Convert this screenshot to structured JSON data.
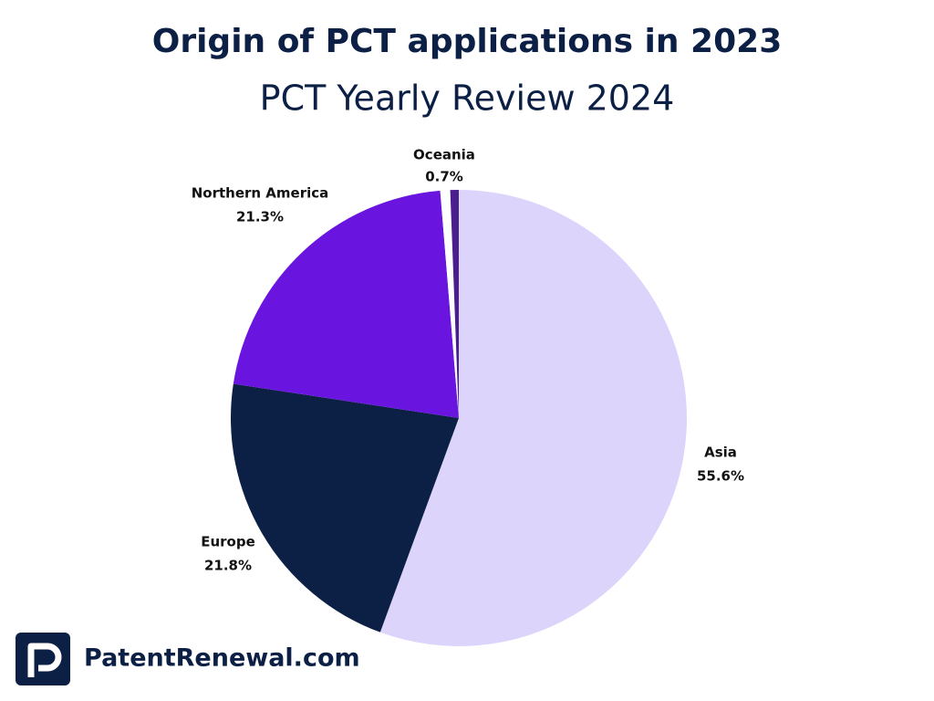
{
  "chart_data": {
    "type": "pie",
    "title": "Origin of PCT applications in 2023",
    "subtitle": "PCT Yearly Review 2024",
    "categories": [
      "Asia",
      "Europe",
      "Northern America",
      "Oceania",
      null
    ],
    "values": [
      55.6,
      21.8,
      21.3,
      0.7,
      0.6
    ],
    "value_labels": [
      "55.6%",
      "21.8%",
      "21.3%",
      "0.7%",
      null
    ],
    "colors": [
      "#ddd4fc",
      "#0c1f45",
      "#6a14e0",
      "#ffffff",
      "#4a1e8c"
    ]
  },
  "brand": "PatentRenewal.com"
}
